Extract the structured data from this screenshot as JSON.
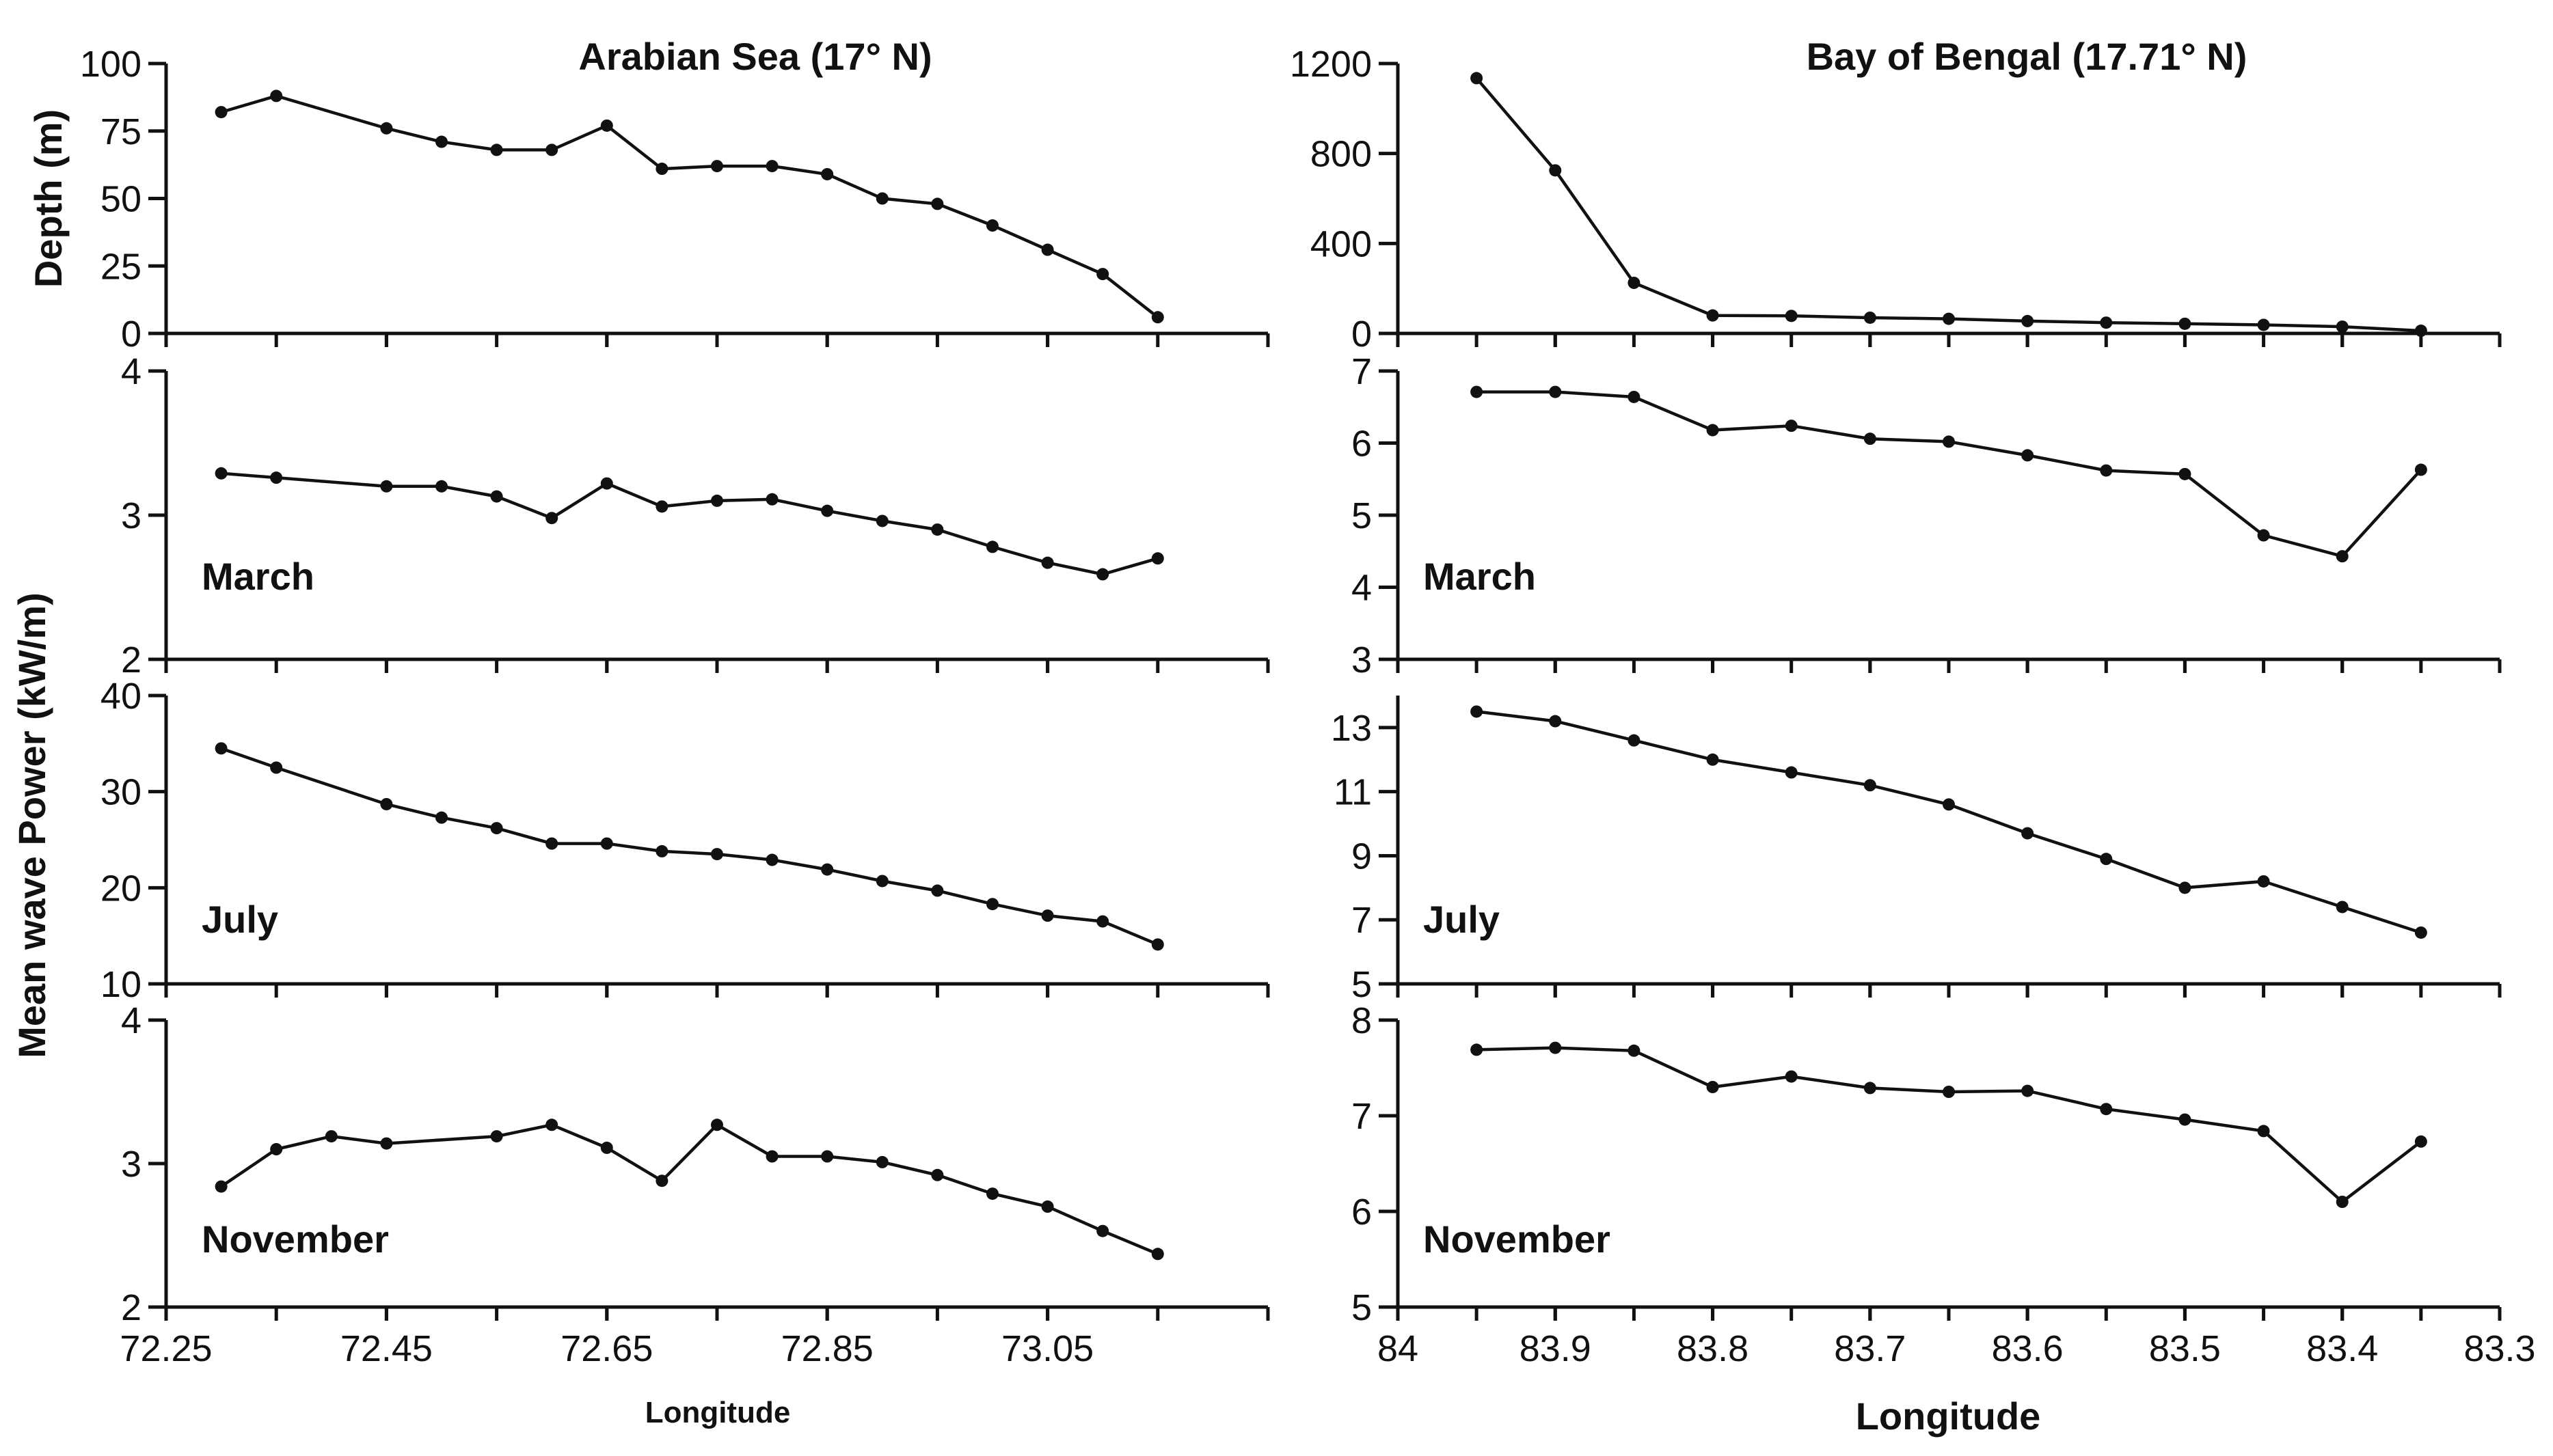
{
  "figure": {
    "y_axis_title": "Mean  wave Power (kW/m)"
  },
  "chart_data": [
    {
      "id": "arabian-depth",
      "type": "line",
      "column": "left",
      "row": 0,
      "title": "Arabian Sea (17° N)",
      "ylabel": "Depth (m)",
      "label": "",
      "ylim": [
        0,
        100
      ],
      "yticks": [
        0,
        25,
        50,
        75,
        100
      ],
      "x": [
        72.3,
        72.35,
        72.45,
        72.5,
        72.55,
        72.6,
        72.65,
        72.7,
        72.75,
        72.8,
        72.85,
        72.9,
        72.95,
        73.0,
        73.05,
        73.1,
        73.15
      ],
      "values": [
        82,
        88,
        76,
        71,
        68,
        68,
        77,
        61,
        62,
        62,
        59,
        50,
        48,
        40,
        31,
        22,
        6
      ]
    },
    {
      "id": "arabian-march",
      "type": "line",
      "column": "left",
      "row": 1,
      "title": "",
      "ylabel": "",
      "label": "March",
      "ylim": [
        2,
        4
      ],
      "yticks": [
        2,
        3,
        4
      ],
      "x": [
        72.3,
        72.35,
        72.45,
        72.5,
        72.55,
        72.6,
        72.65,
        72.7,
        72.75,
        72.8,
        72.85,
        72.9,
        72.95,
        73.0,
        73.05,
        73.1,
        73.15
      ],
      "values": [
        3.29,
        3.26,
        3.2,
        3.2,
        3.13,
        2.98,
        3.22,
        3.06,
        3.1,
        3.11,
        3.03,
        2.96,
        2.9,
        2.78,
        2.67,
        2.59,
        2.7
      ]
    },
    {
      "id": "arabian-july",
      "type": "line",
      "column": "left",
      "row": 2,
      "title": "",
      "ylabel": "",
      "label": "July",
      "ylim": [
        10,
        40
      ],
      "yticks": [
        10,
        20,
        30,
        40
      ],
      "x": [
        72.3,
        72.35,
        72.45,
        72.5,
        72.55,
        72.6,
        72.65,
        72.7,
        72.75,
        72.8,
        72.85,
        72.9,
        72.95,
        73.0,
        73.05,
        73.1,
        73.15
      ],
      "values": [
        34.5,
        32.5,
        28.7,
        27.3,
        26.2,
        24.6,
        24.6,
        23.8,
        23.5,
        22.9,
        21.9,
        20.7,
        19.7,
        18.3,
        17.1,
        16.5,
        14.1
      ]
    },
    {
      "id": "arabian-november",
      "type": "line",
      "column": "left",
      "row": 3,
      "title": "",
      "ylabel": "",
      "label": "November",
      "ylim": [
        2,
        4
      ],
      "yticks": [
        2,
        3,
        4
      ],
      "x": [
        72.3,
        72.35,
        72.4,
        72.45,
        72.55,
        72.6,
        72.65,
        72.7,
        72.75,
        72.8,
        72.85,
        72.9,
        72.95,
        73.0,
        73.05,
        73.1,
        73.15
      ],
      "values": [
        2.84,
        3.1,
        3.19,
        3.14,
        3.19,
        3.27,
        3.11,
        2.88,
        3.27,
        3.05,
        3.05,
        3.01,
        2.92,
        2.79,
        2.7,
        2.53,
        2.37
      ]
    },
    {
      "id": "bengal-depth",
      "type": "line",
      "column": "right",
      "row": 0,
      "title": "Bay of Bengal (17.71° N)",
      "ylabel": "",
      "label": "",
      "ylim": [
        0,
        1200
      ],
      "yticks": [
        0,
        400,
        800,
        1200
      ],
      "x": [
        83.95,
        83.9,
        83.85,
        83.8,
        83.75,
        83.7,
        83.65,
        83.6,
        83.55,
        83.5,
        83.45,
        83.4,
        83.35
      ],
      "values": [
        1135,
        725,
        225,
        80,
        78,
        70,
        65,
        55,
        48,
        43,
        38,
        30,
        12
      ]
    },
    {
      "id": "bengal-march",
      "type": "line",
      "column": "right",
      "row": 1,
      "title": "",
      "ylabel": "",
      "label": "March",
      "ylim": [
        3,
        7
      ],
      "yticks": [
        3,
        4,
        5,
        6,
        7
      ],
      "x": [
        83.95,
        83.9,
        83.85,
        83.8,
        83.75,
        83.7,
        83.65,
        83.6,
        83.55,
        83.5,
        83.45,
        83.4,
        83.35
      ],
      "values": [
        6.71,
        6.71,
        6.64,
        6.18,
        6.24,
        6.06,
        6.02,
        5.83,
        5.62,
        5.57,
        4.72,
        4.43,
        5.63
      ]
    },
    {
      "id": "bengal-july",
      "type": "line",
      "column": "right",
      "row": 2,
      "title": "",
      "ylabel": "",
      "label": "July",
      "ylim": [
        5,
        14
      ],
      "yticks": [
        5,
        7,
        9,
        11,
        13
      ],
      "x": [
        83.95,
        83.9,
        83.85,
        83.8,
        83.75,
        83.7,
        83.65,
        83.6,
        83.55,
        83.5,
        83.45,
        83.4,
        83.35
      ],
      "values": [
        13.5,
        13.2,
        12.6,
        12.0,
        11.6,
        11.2,
        10.6,
        9.7,
        8.9,
        8.0,
        8.2,
        7.4,
        6.6
      ]
    },
    {
      "id": "bengal-november",
      "type": "line",
      "column": "right",
      "row": 3,
      "title": "",
      "ylabel": "",
      "label": "November",
      "ylim": [
        5,
        8
      ],
      "yticks": [
        5,
        6,
        7,
        8
      ],
      "x": [
        83.95,
        83.9,
        83.85,
        83.8,
        83.75,
        83.7,
        83.65,
        83.6,
        83.55,
        83.5,
        83.45,
        83.4,
        83.35
      ],
      "values": [
        7.69,
        7.71,
        7.68,
        7.3,
        7.41,
        7.29,
        7.25,
        7.26,
        7.07,
        6.96,
        6.84,
        6.1,
        6.73
      ]
    }
  ],
  "x_axes": {
    "left": {
      "xlim": [
        72.25,
        73.25
      ],
      "ticks": [
        72.25,
        72.45,
        72.65,
        72.85,
        73.05
      ],
      "tick_labels": [
        "72.25",
        "72.45",
        "72.65",
        "72.85",
        "73.05"
      ],
      "xlabel": "Longitude"
    },
    "right": {
      "xlim": [
        84,
        83.3
      ],
      "ticks": [
        84,
        83.9,
        83.8,
        83.7,
        83.6,
        83.5,
        83.4,
        83.3
      ],
      "tick_labels": [
        "84",
        "83.9",
        "83.8",
        "83.7",
        "83.6",
        "83.5",
        "83.4",
        "83.3"
      ],
      "xlabel": "Longitude"
    }
  }
}
